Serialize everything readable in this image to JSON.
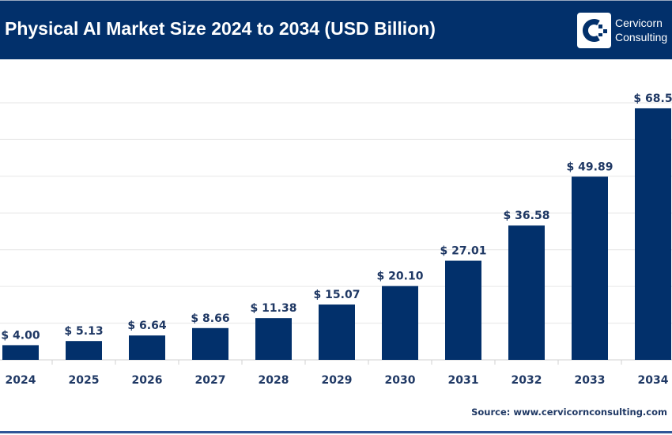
{
  "header": {
    "title": "Physical AI Market Size 2024 to 2034 (USD Billion)",
    "logo_text_line1": "Cervicorn",
    "logo_text_line2": "Consulting"
  },
  "source": "Source: www.cervicornconsulting.com",
  "colors": {
    "bar": "#02306b",
    "header": "#02306b",
    "label": "#1f3864"
  },
  "chart_data": {
    "type": "bar",
    "title": "Physical AI Market Size 2024 to 2034 (USD Billion)",
    "categories": [
      "2024",
      "2025",
      "2026",
      "2027",
      "2028",
      "2029",
      "2030",
      "2031",
      "2032",
      "2033",
      "2034"
    ],
    "values": [
      4.0,
      5.13,
      6.64,
      8.66,
      11.38,
      15.07,
      20.1,
      27.01,
      36.58,
      49.89,
      68.5
    ],
    "data_labels": [
      "$ 4.00",
      "$ 5.13",
      "$ 6.64",
      "$ 8.66",
      "$ 11.38",
      "$ 15.07",
      "$ 20.10",
      "$ 27.01",
      "$ 36.58",
      "$ 49.89",
      "$ 68.5"
    ],
    "ylim": [
      0,
      70
    ],
    "grid": true,
    "xlabel": "",
    "ylabel": ""
  }
}
